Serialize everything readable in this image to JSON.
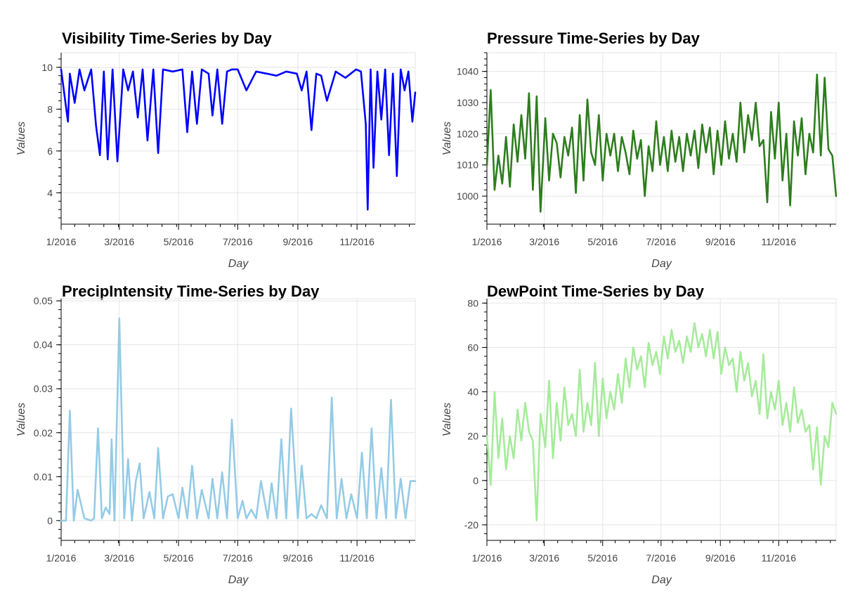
{
  "chart_data": [
    {
      "type": "line",
      "title": "Visibility Time-Series by Day",
      "xlabel": "Day",
      "ylabel": "Values",
      "color": "#0000ff",
      "xlim": [
        "2016-01-01",
        "2016-12-31"
      ],
      "xticks": [
        "1/2016",
        "3/2016",
        "5/2016",
        "7/2016",
        "9/2016",
        "11/2016"
      ],
      "ylim": [
        2.5,
        10.7
      ],
      "yticks": [
        "4",
        "6",
        "8",
        "10"
      ],
      "grid": true,
      "series": [
        {
          "x": [
            "2016-01-01",
            "2016-01-08",
            "2016-01-10",
            "2016-01-15",
            "2016-01-20",
            "2016-01-25",
            "2016-02-01",
            "2016-02-06",
            "2016-02-10",
            "2016-02-14",
            "2016-02-18",
            "2016-02-23",
            "2016-02-28",
            "2016-03-05",
            "2016-03-10",
            "2016-03-15",
            "2016-03-20",
            "2016-03-25",
            "2016-03-30",
            "2016-04-05",
            "2016-04-10",
            "2016-04-15",
            "2016-04-25",
            "2016-05-05",
            "2016-05-10",
            "2016-05-15",
            "2016-05-20",
            "2016-05-25",
            "2016-06-01",
            "2016-06-05",
            "2016-06-10",
            "2016-06-15",
            "2016-06-20",
            "2016-06-25",
            "2016-07-01",
            "2016-07-10",
            "2016-07-20",
            "2016-07-31",
            "2016-08-10",
            "2016-08-20",
            "2016-08-31",
            "2016-09-05",
            "2016-09-10",
            "2016-09-15",
            "2016-09-20",
            "2016-09-25",
            "2016-10-01",
            "2016-10-10",
            "2016-10-20",
            "2016-10-31",
            "2016-11-05",
            "2016-11-10",
            "2016-11-12",
            "2016-11-15",
            "2016-11-18",
            "2016-11-22",
            "2016-11-26",
            "2016-11-30",
            "2016-12-04",
            "2016-12-08",
            "2016-12-12",
            "2016-12-16",
            "2016-12-20",
            "2016-12-24",
            "2016-12-28",
            "2016-12-31"
          ],
          "y": [
            9.9,
            7.4,
            9.7,
            8.3,
            9.9,
            8.9,
            9.9,
            7.2,
            5.8,
            9.8,
            5.6,
            9.9,
            5.5,
            9.9,
            8.9,
            9.8,
            7.6,
            9.9,
            6.5,
            9.9,
            5.9,
            9.9,
            9.8,
            9.9,
            6.9,
            9.8,
            7.3,
            9.9,
            9.7,
            7.7,
            9.9,
            7.3,
            9.8,
            9.9,
            9.9,
            8.9,
            9.8,
            9.7,
            9.6,
            9.8,
            9.7,
            8.9,
            9.8,
            7.0,
            9.7,
            9.6,
            8.4,
            9.8,
            9.5,
            9.9,
            9.8,
            7.3,
            3.2,
            9.9,
            5.2,
            9.8,
            7.5,
            9.9,
            5.8,
            9.7,
            4.8,
            9.9,
            8.9,
            9.8,
            7.4,
            8.8
          ]
        }
      ]
    },
    {
      "type": "line",
      "title": "Pressure Time-Series by Day",
      "xlabel": "Day",
      "ylabel": "Values",
      "color": "#2e7d1e",
      "xlim": [
        "2016-01-01",
        "2016-12-31"
      ],
      "xticks": [
        "1/2016",
        "3/2016",
        "5/2016",
        "7/2016",
        "9/2016",
        "11/2016"
      ],
      "ylim": [
        991,
        1046
      ],
      "yticks": [
        "1000",
        "1010",
        "1020",
        "1030",
        "1040"
      ],
      "grid": true,
      "series": [
        {
          "x": [
            "2016-01-01",
            "2016-01-05",
            "2016-01-09",
            "2016-01-13",
            "2016-01-17",
            "2016-01-21",
            "2016-01-25",
            "2016-01-29",
            "2016-02-02",
            "2016-02-06",
            "2016-02-10",
            "2016-02-14",
            "2016-02-18",
            "2016-02-22",
            "2016-02-26",
            "2016-03-02",
            "2016-03-06",
            "2016-03-10",
            "2016-03-14",
            "2016-03-18",
            "2016-03-22",
            "2016-03-26",
            "2016-03-30",
            "2016-04-03",
            "2016-04-07",
            "2016-04-11",
            "2016-04-15",
            "2016-04-19",
            "2016-04-23",
            "2016-04-27",
            "2016-05-01",
            "2016-05-05",
            "2016-05-09",
            "2016-05-13",
            "2016-05-17",
            "2016-05-21",
            "2016-05-25",
            "2016-05-29",
            "2016-06-02",
            "2016-06-06",
            "2016-06-10",
            "2016-06-14",
            "2016-06-18",
            "2016-06-22",
            "2016-06-26",
            "2016-06-30",
            "2016-07-04",
            "2016-07-08",
            "2016-07-12",
            "2016-07-16",
            "2016-07-20",
            "2016-07-24",
            "2016-07-28",
            "2016-08-01",
            "2016-08-05",
            "2016-08-09",
            "2016-08-13",
            "2016-08-17",
            "2016-08-21",
            "2016-08-25",
            "2016-08-29",
            "2016-09-02",
            "2016-09-06",
            "2016-09-10",
            "2016-09-14",
            "2016-09-18",
            "2016-09-22",
            "2016-09-26",
            "2016-09-30",
            "2016-10-04",
            "2016-10-08",
            "2016-10-12",
            "2016-10-16",
            "2016-10-20",
            "2016-10-24",
            "2016-10-28",
            "2016-11-01",
            "2016-11-05",
            "2016-11-09",
            "2016-11-13",
            "2016-11-17",
            "2016-11-21",
            "2016-11-25",
            "2016-11-29",
            "2016-12-03",
            "2016-12-07",
            "2016-12-11",
            "2016-12-15",
            "2016-12-19",
            "2016-12-23",
            "2016-12-27",
            "2016-12-31"
          ],
          "y": [
            1010,
            1034,
            1002,
            1013,
            1004,
            1019,
            1003,
            1023,
            1011,
            1026,
            1012,
            1033,
            1002,
            1032,
            995,
            1025,
            1005,
            1020,
            1017,
            1006,
            1019,
            1013,
            1022,
            1001,
            1026,
            1005,
            1031,
            1014,
            1010,
            1026,
            1005,
            1020,
            1013,
            1020,
            1008,
            1019,
            1014,
            1007,
            1021,
            1012,
            1018,
            1000,
            1016,
            1008,
            1024,
            1010,
            1019,
            1008,
            1021,
            1011,
            1019,
            1008,
            1020,
            1013,
            1021,
            1009,
            1023,
            1014,
            1022,
            1007,
            1021,
            1010,
            1024,
            1012,
            1020,
            1011,
            1030,
            1014,
            1026,
            1018,
            1030,
            1016,
            1018,
            998,
            1027,
            1012,
            1030,
            1005,
            1020,
            997,
            1024,
            1013,
            1025,
            1007,
            1020,
            1014,
            1039,
            1013,
            1038,
            1015,
            1013,
            1000
          ]
        }
      ]
    },
    {
      "type": "line",
      "title": "PrecipIntensity Time-Series by Day",
      "xlabel": "Day",
      "ylabel": "Values",
      "color": "#95cbe6",
      "xlim": [
        "2016-01-01",
        "2016-12-31"
      ],
      "xticks": [
        "1/2016",
        "3/2016",
        "5/2016",
        "7/2016",
        "9/2016",
        "11/2016"
      ],
      "ylim": [
        -0.0045,
        0.0505
      ],
      "yticks": [
        "0",
        "0.01",
        "0.02",
        "0.03",
        "0.04",
        "0.05"
      ],
      "grid": true,
      "series": [
        {
          "x": [
            "2016-01-01",
            "2016-01-06",
            "2016-01-10",
            "2016-01-14",
            "2016-01-18",
            "2016-01-25",
            "2016-02-01",
            "2016-02-04",
            "2016-02-08",
            "2016-02-12",
            "2016-02-16",
            "2016-02-20",
            "2016-02-22",
            "2016-02-25",
            "2016-03-01",
            "2016-03-06",
            "2016-03-10",
            "2016-03-14",
            "2016-03-18",
            "2016-03-22",
            "2016-03-26",
            "2016-04-01",
            "2016-04-06",
            "2016-04-10",
            "2016-04-15",
            "2016-04-20",
            "2016-04-25",
            "2016-05-01",
            "2016-05-05",
            "2016-05-10",
            "2016-05-15",
            "2016-05-20",
            "2016-05-25",
            "2016-06-01",
            "2016-06-05",
            "2016-06-10",
            "2016-06-15",
            "2016-06-20",
            "2016-06-25",
            "2016-07-01",
            "2016-07-06",
            "2016-07-10",
            "2016-07-15",
            "2016-07-20",
            "2016-07-25",
            "2016-08-01",
            "2016-08-05",
            "2016-08-10",
            "2016-08-15",
            "2016-08-20",
            "2016-08-25",
            "2016-09-01",
            "2016-09-05",
            "2016-09-10",
            "2016-09-15",
            "2016-09-20",
            "2016-09-25",
            "2016-10-01",
            "2016-10-06",
            "2016-10-11",
            "2016-10-16",
            "2016-10-21",
            "2016-10-26",
            "2016-11-01",
            "2016-11-06",
            "2016-11-11",
            "2016-11-16",
            "2016-11-21",
            "2016-11-26",
            "2016-12-01",
            "2016-12-06",
            "2016-12-11",
            "2016-12-16",
            "2016-12-21",
            "2016-12-26",
            "2016-12-31"
          ],
          "y": [
            0,
            0,
            0.025,
            0,
            0.007,
            0.0005,
            0,
            0.0005,
            0.021,
            0.0005,
            0.003,
            0.0015,
            0.0185,
            0,
            0.046,
            0.0005,
            0.014,
            0,
            0.009,
            0.013,
            0.0005,
            0.0065,
            0.0005,
            0.0165,
            0.0005,
            0.0055,
            0.006,
            0.0005,
            0.0075,
            0.0005,
            0.0125,
            0.0005,
            0.007,
            0.0005,
            0.0095,
            0.0005,
            0.011,
            0.0005,
            0.023,
            0.0005,
            0.0045,
            0.0005,
            0.0025,
            0.0005,
            0.009,
            0.0005,
            0.0085,
            0.0005,
            0.0185,
            0.0005,
            0.0255,
            0.0005,
            0.0125,
            0.0005,
            0.0015,
            0.0005,
            0.0035,
            0.0005,
            0.028,
            0.0005,
            0.0095,
            0.0005,
            0.006,
            0.0005,
            0.0155,
            0.0005,
            0.021,
            0.0005,
            0.012,
            0.0005,
            0.0275,
            0.0005,
            0.0095,
            0.0005,
            0.009,
            0.009
          ]
        }
      ]
    },
    {
      "type": "line",
      "title": "DewPoint Time-Series by Day",
      "xlabel": "Day",
      "ylabel": "Values",
      "color": "#a6eb9b",
      "xlim": [
        "2016-01-01",
        "2016-12-31"
      ],
      "xticks": [
        "1/2016",
        "3/2016",
        "5/2016",
        "7/2016",
        "9/2016",
        "11/2016"
      ],
      "ylim": [
        -27,
        82
      ],
      "yticks": [
        "-20",
        "0",
        "20",
        "40",
        "60",
        "80"
      ],
      "grid": true,
      "series": [
        {
          "x": [
            "2016-01-01",
            "2016-01-05",
            "2016-01-09",
            "2016-01-13",
            "2016-01-17",
            "2016-01-21",
            "2016-01-25",
            "2016-01-29",
            "2016-02-02",
            "2016-02-06",
            "2016-02-10",
            "2016-02-14",
            "2016-02-18",
            "2016-02-22",
            "2016-02-26",
            "2016-03-02",
            "2016-03-06",
            "2016-03-10",
            "2016-03-14",
            "2016-03-18",
            "2016-03-22",
            "2016-03-26",
            "2016-03-30",
            "2016-04-03",
            "2016-04-07",
            "2016-04-11",
            "2016-04-15",
            "2016-04-19",
            "2016-04-23",
            "2016-04-27",
            "2016-05-01",
            "2016-05-05",
            "2016-05-09",
            "2016-05-13",
            "2016-05-17",
            "2016-05-21",
            "2016-05-25",
            "2016-05-29",
            "2016-06-02",
            "2016-06-06",
            "2016-06-10",
            "2016-06-14",
            "2016-06-18",
            "2016-06-22",
            "2016-06-26",
            "2016-06-30",
            "2016-07-04",
            "2016-07-08",
            "2016-07-12",
            "2016-07-16",
            "2016-07-20",
            "2016-07-24",
            "2016-07-28",
            "2016-08-01",
            "2016-08-05",
            "2016-08-09",
            "2016-08-13",
            "2016-08-17",
            "2016-08-21",
            "2016-08-25",
            "2016-08-29",
            "2016-09-02",
            "2016-09-06",
            "2016-09-10",
            "2016-09-14",
            "2016-09-18",
            "2016-09-22",
            "2016-09-26",
            "2016-09-30",
            "2016-10-04",
            "2016-10-08",
            "2016-10-12",
            "2016-10-16",
            "2016-10-20",
            "2016-10-24",
            "2016-10-28",
            "2016-11-01",
            "2016-11-05",
            "2016-11-09",
            "2016-11-13",
            "2016-11-17",
            "2016-11-21",
            "2016-11-25",
            "2016-11-29",
            "2016-12-03",
            "2016-12-07",
            "2016-12-11",
            "2016-12-15",
            "2016-12-19",
            "2016-12-23",
            "2016-12-27",
            "2016-12-31"
          ],
          "y": [
            20,
            -2,
            40,
            10,
            28,
            5,
            20,
            10,
            32,
            18,
            35,
            22,
            18,
            -18,
            30,
            15,
            45,
            10,
            35,
            18,
            42,
            25,
            30,
            20,
            50,
            22,
            35,
            25,
            53,
            20,
            46,
            28,
            40,
            32,
            48,
            35,
            55,
            42,
            60,
            50,
            56,
            42,
            62,
            52,
            58,
            48,
            65,
            55,
            68,
            58,
            63,
            53,
            65,
            58,
            71,
            60,
            66,
            56,
            68,
            55,
            67,
            48,
            60,
            52,
            55,
            40,
            58,
            45,
            53,
            38,
            45,
            30,
            57,
            28,
            40,
            32,
            45,
            25,
            35,
            22,
            42,
            26,
            32,
            22,
            25,
            5,
            24,
            -2,
            20,
            15,
            35,
            30
          ]
        }
      ]
    }
  ]
}
